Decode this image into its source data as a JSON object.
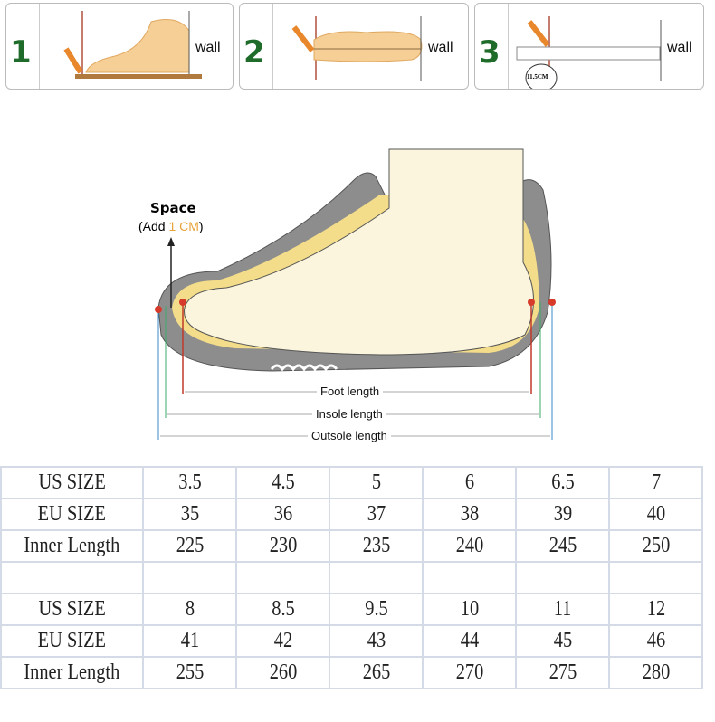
{
  "steps": [
    {
      "number": "1",
      "wall_label": "wall"
    },
    {
      "number": "2",
      "wall_label": "wall"
    },
    {
      "number": "3",
      "wall_label": "wall",
      "ruler_reading": "11.5CM"
    }
  ],
  "diagram": {
    "space_title": "Space",
    "space_note_prefix": "(Add ",
    "space_note_value": "1 CM",
    "space_note_suffix": ")",
    "foot_length": "Foot length",
    "insole_length": "Insole length",
    "outsole_length": "Outsole length",
    "accent_color": "#e8a33a"
  },
  "size_table": {
    "groups": [
      {
        "rows": [
          {
            "label": "US SIZE",
            "values": [
              "3.5",
              "4.5",
              "5",
              "6",
              "6.5",
              "7"
            ]
          },
          {
            "label": "EU SIZE",
            "values": [
              "35",
              "36",
              "37",
              "38",
              "39",
              "40"
            ]
          },
          {
            "label": "Inner Length",
            "values": [
              "225",
              "230",
              "235",
              "240",
              "245",
              "250"
            ]
          }
        ]
      },
      {
        "rows": [
          {
            "label": "US SIZE",
            "values": [
              "8",
              "8.5",
              "9.5",
              "10",
              "11",
              "12"
            ]
          },
          {
            "label": "EU SIZE",
            "values": [
              "41",
              "42",
              "43",
              "44",
              "45",
              "46"
            ]
          },
          {
            "label": "Inner Length",
            "values": [
              "255",
              "260",
              "265",
              "270",
              "275",
              "280"
            ]
          }
        ]
      }
    ]
  }
}
